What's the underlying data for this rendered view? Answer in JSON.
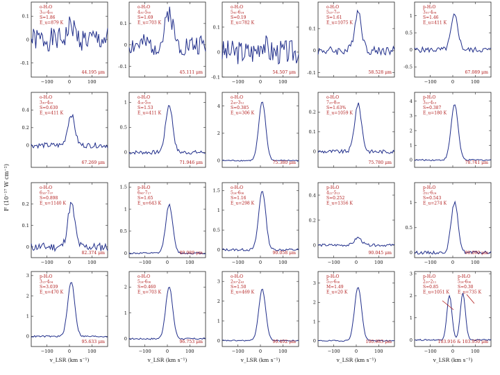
{
  "chart_data": {
    "type": "line",
    "ylabel": "F (10⁻¹⁷ W cm⁻²)",
    "xlabel": "v_LSR (km s⁻¹)",
    "xlim": [
      -170,
      170
    ],
    "panels": [
      {
        "lines": [
          "o-H₂O",
          "3₁₂-4₀₁",
          "S=1.86",
          "E_u=879 K"
        ],
        "wavelength": "44.195 μm",
        "ylim": [
          -0.16,
          0.16
        ],
        "yticks": [
          -0.1,
          0,
          0.1
        ],
        "ytick_labels": [
          "-0.1",
          "0",
          "0.1"
        ],
        "peak": 0.06,
        "noise": 0.05,
        "seed": 1
      },
      {
        "lines": [
          "o-H₂O",
          "4₃₂-5₀₅",
          "S=1.69",
          "E_u=703 K"
        ],
        "wavelength": "45.111 μm",
        "ylim": [
          -0.15,
          0.2
        ],
        "yticks": [
          -0.1,
          0,
          0.1
        ],
        "ytick_labels": [
          "-0.1",
          "0",
          "0.1"
        ],
        "peak": 0.16,
        "noise": 0.05,
        "seed": 2
      },
      {
        "lines": [
          "o-H₂O",
          "5₄₁-6₂₄",
          "S=0.19",
          "E_u=782 K"
        ],
        "wavelength": "54.507 μm",
        "ylim": [
          -0.1,
          0.2
        ],
        "yticks": [
          -0.1,
          0,
          0.1
        ],
        "ytick_labels": [
          "-0.1",
          "0",
          "0.1"
        ],
        "peak": 0.04,
        "noise": 0.05,
        "seed": 3
      },
      {
        "lines": [
          "o-H₂O",
          "5₂₃-7₀₇",
          "S=1.61",
          "E_u=1075 K"
        ],
        "wavelength": "58.528 μm",
        "ylim": [
          -0.12,
          0.22
        ],
        "yticks": [
          -0.1,
          0,
          0.1
        ],
        "ytick_labels": [
          "-0.1",
          "0",
          "0.1"
        ],
        "peak": 0.18,
        "noise": 0.02,
        "seed": 4
      },
      {
        "lines": [
          "p-H₂O",
          "3₃₁-4₀₄",
          "S=1.46",
          "E_u=411 K"
        ],
        "wavelength": "67.089 μm",
        "ylim": [
          -0.8,
          1.4
        ],
        "yticks": [
          -0.5,
          0,
          0.5,
          1
        ],
        "ytick_labels": [
          "-0.5",
          "0",
          "0.5",
          "1"
        ],
        "peak": 1.0,
        "noise": 0.08,
        "seed": 5
      },
      {
        "lines": [
          "o-H₂O",
          "3₃₀-4₀₃",
          "S=0.630",
          "E_u=411 K"
        ],
        "wavelength": "67.269 μm",
        "ylim": [
          -0.25,
          0.6
        ],
        "yticks": [
          0,
          0.2,
          0.4
        ],
        "ytick_labels": [
          "0",
          "0.2",
          "0.4"
        ],
        "peak": 0.35,
        "noise": 0.03,
        "seed": 6
      },
      {
        "lines": [
          "o-H₂O",
          "4₁₄-5₀₅",
          "S=1.53",
          "E_u=411 K"
        ],
        "wavelength": "71.946 μm",
        "ylim": [
          -0.3,
          1.2
        ],
        "yticks": [
          0,
          0.5,
          1
        ],
        "ytick_labels": [
          "0",
          "0.5",
          "1"
        ],
        "peak": 0.95,
        "noise": 0.04,
        "seed": 7
      },
      {
        "lines": [
          "o-H₂O",
          "2₄₃-3₁₂",
          "S=0.385",
          "E_u=306 K"
        ],
        "wavelength": "75.380 μm",
        "ylim": [
          -0.5,
          5
        ],
        "yticks": [
          0,
          2,
          4
        ],
        "ytick_labels": [
          "0",
          "2",
          "4"
        ],
        "peak": 4.3,
        "noise": 0.05,
        "seed": 8
      },
      {
        "lines": [
          "o-H₂O",
          "7₂₅-8₁₈",
          "S=1.63%",
          "E_u=1059 K"
        ],
        "wavelength": "75.780 μm",
        "ylim": [
          -0.08,
          0.3
        ],
        "yticks": [
          0,
          0.1,
          0.2
        ],
        "ytick_labels": [
          "0",
          "0.1",
          "0.2"
        ],
        "peak": 0.24,
        "noise": 0.01,
        "seed": 9
      },
      {
        "lines": [
          "p-H₂O",
          "3₂₂-4₁₃",
          "S=0.387",
          "E_u=180 K"
        ],
        "wavelength": "78.741 μm",
        "ylim": [
          -0.5,
          4.6
        ],
        "yticks": [
          0,
          1,
          2,
          3,
          4
        ],
        "ytick_labels": [
          "0",
          "1",
          "2",
          "3",
          "4"
        ],
        "peak": 3.8,
        "noise": 0.05,
        "seed": 10
      },
      {
        "lines": [
          "o-H₂O",
          "6₁₆-7₀₇",
          "S=0.898",
          "E_u=1140 K"
        ],
        "wavelength": "82.374 μm",
        "ylim": [
          -0.05,
          0.3
        ],
        "yticks": [
          0,
          0.1,
          0.2
        ],
        "ytick_labels": [
          "0",
          "0.1",
          "0.2"
        ],
        "peak": 0.2,
        "noise": 0.02,
        "seed": 11
      },
      {
        "lines": [
          "p-H₂O",
          "6₀₆-7₁₇",
          "S=1.65",
          "E_u=643 K"
        ],
        "wavelength": "89.988 μm",
        "ylim": [
          -0.1,
          1.6
        ],
        "yticks": [
          0,
          0.5,
          1,
          1.5
        ],
        "ytick_labels": [
          "0",
          "0.5",
          "1",
          "1.5"
        ],
        "peak": 1.1,
        "noise": 0.02,
        "seed": 12
      },
      {
        "lines": [
          "o-H₂O",
          "5₂₄-6₀₆",
          "S=1.16",
          "E_u=298 K"
        ],
        "wavelength": "90.058 μm",
        "ylim": [
          -0.2,
          1.7
        ],
        "yticks": [
          0,
          0.5,
          1,
          1.5
        ],
        "ytick_labels": [
          "0",
          "0.5",
          "1",
          "1.5"
        ],
        "peak": 1.5,
        "noise": 0.03,
        "seed": 13
      },
      {
        "lines": [
          "p-H₂O",
          "4₂₂-5₁₃",
          "S=0.252",
          "E_u=1356 K"
        ],
        "wavelength": "90.045 μm",
        "ylim": [
          -0.1,
          0.5
        ],
        "yticks": [
          0,
          0.2,
          0.4
        ],
        "ytick_labels": [
          "0",
          "0.2",
          "0.4"
        ],
        "peak": 0.06,
        "noise": 0.01,
        "seed": 14
      },
      {
        "lines": [
          "p-H₂O",
          "5₅₁-6₂₄",
          "S=0.543",
          "E_u=274 K"
        ],
        "wavelength": "90.090 μm",
        "ylim": [
          -0.1,
          1.4
        ],
        "yticks": [
          0,
          0.5,
          1
        ],
        "ytick_labels": [
          "0",
          "0.5",
          "1"
        ],
        "peak": 1.0,
        "noise": 0.03,
        "seed": 15
      },
      {
        "lines": [
          "p-H₂O",
          "3₁₃-4₀₄",
          "S=3.039",
          "E_u=470 K"
        ],
        "wavelength": "95.633 μm",
        "ylim": [
          -0.5,
          3.2
        ],
        "yticks": [
          0,
          1,
          2,
          3
        ],
        "ytick_labels": [
          "0",
          "1",
          "2",
          "3"
        ],
        "peak": 2.7,
        "noise": 0.04,
        "seed": 16
      },
      {
        "lines": [
          "o-H₂O",
          "5₂₄-6₀₆",
          "S=0.460",
          "E_u=703 K"
        ],
        "wavelength": "96.753 μm",
        "ylim": [
          -0.3,
          2.6
        ],
        "yticks": [
          0,
          1,
          2
        ],
        "ytick_labels": [
          "0",
          "1",
          "2"
        ],
        "peak": 2.0,
        "noise": 0.03,
        "seed": 17
      },
      {
        "lines": [
          "o-H₂O",
          "2₅₀-2₄₃",
          "S=1.50",
          "E_u=469 K"
        ],
        "wavelength": "99.492 μm",
        "ylim": [
          -0.3,
          3.5
        ],
        "yticks": [
          0,
          1,
          2,
          3
        ],
        "ytick_labels": [
          "0",
          "1",
          "2",
          "3"
        ],
        "peak": 2.6,
        "noise": 0.03,
        "seed": 18
      },
      {
        "lines": [
          "p-H₂O",
          "5₁₅-6₀₆",
          "M=1.49",
          "E_u=20 K"
        ],
        "wavelength": "100.983 μm",
        "ylim": [
          -0.3,
          3.6
        ],
        "yticks": [
          0,
          1,
          2,
          3
        ],
        "ytick_labels": [
          "0",
          "1",
          "2",
          "3"
        ],
        "peak": 2.8,
        "noise": 0.03,
        "seed": 19
      },
      {
        "lines": [
          "p-H₂O",
          "2₂₀-2₁₁",
          "S=0.85",
          "E_u=1051 K"
        ],
        "lines2": [
          "p-H₂O",
          "5₂₄-6₀₆",
          "S=0.30",
          "E_u=735 K"
        ],
        "wavelength": "103.916 & 103.950 μm",
        "ylim": [
          -0.3,
          3.1
        ],
        "yticks": [
          0,
          1,
          2,
          3
        ],
        "ytick_labels": [
          "0",
          "1",
          "2",
          "3"
        ],
        "peak": 2.0,
        "double": true,
        "noise": 0.03,
        "seed": 20
      }
    ]
  }
}
